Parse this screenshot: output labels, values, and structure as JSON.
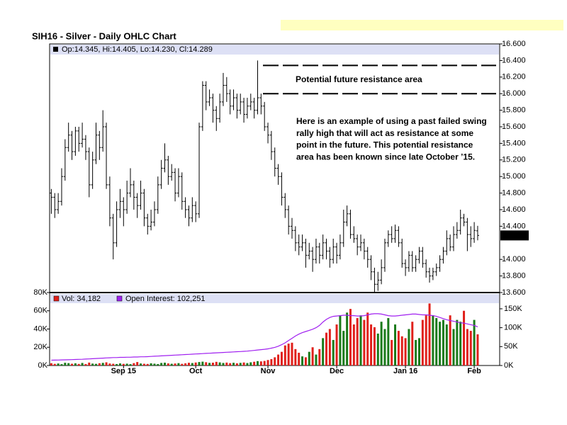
{
  "chart_data": {
    "type": "ohlc",
    "title": "SIH16 - Silver - Daily OHLC Chart",
    "info": "Op:14.345, Hi:14.405, Lo:14.230, Cl:14.289",
    "volume_label": "Vol: 34,182",
    "oi_label": "Open Interest: 102,251",
    "annotation": "Potential future resistance area",
    "note_lines": [
      "Here is an example of using a past failed swing",
      "rally high that will act as resistance at some",
      "point in the future.  This potential resistance",
      "area has been known since late October ’15."
    ],
    "resistance_levels": [
      16.34,
      16.0
    ],
    "xlim": [
      -0.5,
      130.4
    ],
    "xticks": [
      {
        "value": 21,
        "label": "Sep 15"
      },
      {
        "value": 42,
        "label": "Oct"
      },
      {
        "value": 63,
        "label": "Nov"
      },
      {
        "value": 83,
        "label": "Dec"
      },
      {
        "value": 103,
        "label": "Jan 16"
      },
      {
        "value": 123,
        "label": "Feb"
      }
    ],
    "ylim": [
      13.6,
      16.6
    ],
    "yticks": [
      {
        "value": 16.6,
        "label": "16.600"
      },
      {
        "value": 16.4,
        "label": "16.400"
      },
      {
        "value": 16.2,
        "label": "16.200"
      },
      {
        "value": 16.0,
        "label": "16.000"
      },
      {
        "value": 15.8,
        "label": "15.800"
      },
      {
        "value": 15.6,
        "label": "15.600"
      },
      {
        "value": 15.4,
        "label": "15.400"
      },
      {
        "value": 15.2,
        "label": "15.200"
      },
      {
        "value": 15.0,
        "label": "15.000"
      },
      {
        "value": 14.8,
        "label": "14.800"
      },
      {
        "value": 14.6,
        "label": "14.600"
      },
      {
        "value": 14.4,
        "label": "14.400"
      },
      {
        "value": 14.0,
        "label": "14.000"
      },
      {
        "value": 13.8,
        "label": "13.800"
      },
      {
        "value": 13.6,
        "label": "13.600"
      }
    ],
    "vol_lim": [
      0,
      80000
    ],
    "vol_ticks": [
      {
        "value": 80000,
        "label": "80K"
      },
      {
        "value": 60000,
        "label": "60K"
      },
      {
        "value": 40000,
        "label": "40K"
      },
      {
        "value": 20000,
        "label": "20K"
      },
      {
        "value": 0,
        "label": "0K"
      }
    ],
    "y2lim": [
      0,
      193000
    ],
    "y2ticks": [
      {
        "value": 150000,
        "label": "150K"
      },
      {
        "value": 100000,
        "label": "100K"
      },
      {
        "value": 50000,
        "label": "50K"
      },
      {
        "value": 0,
        "label": "0K"
      }
    ],
    "up_color": "#1a7a1a",
    "down_color": "#e0201b",
    "oi_color": "#a020f0",
    "ohlc": [
      [
        14.8,
        14.85,
        14.55,
        14.75
      ],
      [
        14.75,
        14.8,
        14.5,
        14.6
      ],
      [
        14.6,
        14.8,
        14.55,
        14.7
      ],
      [
        14.7,
        15.1,
        14.65,
        15.0
      ],
      [
        15.0,
        15.45,
        14.95,
        15.35
      ],
      [
        15.35,
        15.65,
        15.3,
        15.5
      ],
      [
        15.5,
        15.55,
        15.2,
        15.3
      ],
      [
        15.3,
        15.6,
        15.25,
        15.55
      ],
      [
        15.55,
        15.6,
        15.3,
        15.4
      ],
      [
        15.4,
        15.65,
        15.35,
        15.45
      ],
      [
        15.45,
        15.5,
        15.2,
        15.3
      ],
      [
        15.3,
        15.35,
        14.75,
        14.9
      ],
      [
        14.9,
        15.3,
        14.85,
        15.2
      ],
      [
        15.2,
        15.65,
        15.15,
        15.5
      ],
      [
        15.5,
        15.55,
        15.2,
        15.35
      ],
      [
        15.35,
        15.8,
        15.3,
        15.6
      ],
      [
        15.6,
        15.65,
        14.85,
        14.9
      ],
      [
        14.9,
        15.0,
        14.4,
        14.5
      ],
      [
        14.5,
        14.55,
        14.0,
        14.2
      ],
      [
        14.2,
        14.7,
        14.15,
        14.6
      ],
      [
        14.6,
        14.85,
        14.5,
        14.7
      ],
      [
        14.7,
        14.75,
        14.4,
        14.6
      ],
      [
        14.6,
        14.95,
        14.55,
        14.8
      ],
      [
        14.8,
        15.1,
        14.75,
        14.9
      ],
      [
        14.9,
        14.95,
        14.6,
        14.75
      ],
      [
        14.75,
        14.8,
        14.5,
        14.65
      ],
      [
        14.65,
        14.95,
        14.6,
        14.8
      ],
      [
        14.8,
        14.85,
        14.4,
        14.5
      ],
      [
        14.5,
        14.55,
        14.3,
        14.4
      ],
      [
        14.4,
        14.6,
        14.35,
        14.45
      ],
      [
        14.45,
        14.7,
        14.4,
        14.6
      ],
      [
        14.6,
        15.0,
        14.55,
        14.9
      ],
      [
        14.9,
        15.2,
        14.85,
        15.1
      ],
      [
        15.1,
        15.4,
        15.05,
        15.2
      ],
      [
        15.2,
        15.25,
        14.9,
        15.0
      ],
      [
        15.0,
        15.15,
        14.95,
        15.05
      ],
      [
        15.05,
        15.1,
        14.7,
        14.8
      ],
      [
        14.8,
        15.1,
        14.75,
        15.0
      ],
      [
        15.0,
        15.05,
        14.6,
        14.7
      ],
      [
        14.7,
        14.75,
        14.5,
        14.6
      ],
      [
        14.6,
        14.65,
        14.4,
        14.5
      ],
      [
        14.5,
        14.75,
        14.45,
        14.65
      ],
      [
        14.65,
        14.7,
        14.45,
        14.55
      ],
      [
        14.55,
        15.65,
        14.5,
        15.6
      ],
      [
        15.6,
        16.15,
        15.55,
        16.1
      ],
      [
        16.1,
        16.15,
        15.8,
        15.9
      ],
      [
        15.9,
        16.05,
        15.85,
        15.95
      ],
      [
        15.95,
        16.0,
        15.65,
        15.8
      ],
      [
        15.8,
        15.85,
        15.55,
        15.7
      ],
      [
        15.7,
        16.0,
        15.65,
        15.9
      ],
      [
        15.9,
        16.25,
        15.85,
        16.1
      ],
      [
        16.1,
        16.2,
        15.9,
        16.0
      ],
      [
        16.0,
        16.05,
        15.75,
        15.85
      ],
      [
        15.85,
        16.05,
        15.8,
        15.95
      ],
      [
        15.95,
        16.0,
        15.7,
        15.8
      ],
      [
        15.8,
        16.0,
        15.75,
        15.9
      ],
      [
        15.9,
        15.95,
        15.65,
        15.75
      ],
      [
        15.75,
        15.95,
        15.7,
        15.85
      ],
      [
        15.85,
        16.0,
        15.8,
        15.9
      ],
      [
        15.9,
        15.95,
        15.7,
        15.8
      ],
      [
        15.8,
        16.4,
        15.75,
        15.95
      ],
      [
        15.95,
        16.0,
        15.75,
        15.85
      ],
      [
        15.85,
        15.9,
        15.55,
        15.6
      ],
      [
        15.6,
        15.65,
        15.4,
        15.5
      ],
      [
        15.5,
        15.55,
        15.2,
        15.3
      ],
      [
        15.3,
        15.35,
        15.0,
        15.1
      ],
      [
        15.1,
        15.15,
        14.9,
        15.0
      ],
      [
        15.0,
        15.05,
        14.65,
        14.75
      ],
      [
        14.75,
        14.8,
        14.5,
        14.6
      ],
      [
        14.6,
        14.65,
        14.3,
        14.4
      ],
      [
        14.4,
        14.5,
        14.25,
        14.35
      ],
      [
        14.35,
        14.4,
        14.1,
        14.2
      ],
      [
        14.2,
        14.3,
        14.05,
        14.15
      ],
      [
        14.15,
        14.3,
        14.1,
        14.2
      ],
      [
        14.2,
        14.25,
        13.9,
        14.05
      ],
      [
        14.05,
        14.2,
        14.0,
        14.1
      ],
      [
        14.1,
        14.15,
        13.85,
        14.0
      ],
      [
        14.0,
        14.25,
        13.95,
        14.15
      ],
      [
        14.15,
        14.2,
        13.95,
        14.05
      ],
      [
        14.05,
        14.3,
        14.0,
        14.2
      ],
      [
        14.2,
        14.25,
        14.0,
        14.1
      ],
      [
        14.1,
        14.15,
        13.9,
        14.0
      ],
      [
        14.0,
        14.25,
        13.95,
        14.15
      ],
      [
        14.15,
        14.2,
        13.95,
        14.05
      ],
      [
        14.05,
        14.3,
        14.0,
        14.2
      ],
      [
        14.2,
        14.6,
        14.15,
        14.45
      ],
      [
        14.45,
        14.65,
        14.4,
        14.55
      ],
      [
        14.55,
        14.6,
        14.25,
        14.3
      ],
      [
        14.3,
        14.4,
        14.2,
        14.25
      ],
      [
        14.25,
        14.3,
        14.05,
        14.15
      ],
      [
        14.15,
        14.3,
        14.1,
        14.2
      ],
      [
        14.2,
        14.25,
        14.0,
        14.1
      ],
      [
        14.1,
        14.15,
        13.9,
        14.0
      ],
      [
        14.0,
        14.05,
        13.75,
        13.85
      ],
      [
        13.85,
        13.9,
        13.6,
        13.7
      ],
      [
        13.7,
        13.85,
        13.62,
        13.75
      ],
      [
        13.75,
        14.0,
        13.7,
        13.9
      ],
      [
        13.9,
        14.25,
        13.85,
        14.2
      ],
      [
        14.2,
        14.35,
        14.15,
        14.3
      ],
      [
        14.3,
        14.4,
        14.2,
        14.25
      ],
      [
        14.25,
        14.42,
        14.2,
        14.35
      ],
      [
        14.35,
        14.4,
        14.15,
        14.2
      ],
      [
        14.2,
        14.25,
        13.9,
        13.95
      ],
      [
        13.95,
        14.0,
        13.8,
        13.9
      ],
      [
        13.9,
        14.1,
        13.85,
        14.05
      ],
      [
        14.05,
        14.1,
        13.85,
        13.9
      ],
      [
        13.9,
        14.05,
        13.85,
        14.0
      ],
      [
        14.0,
        14.15,
        13.95,
        14.1
      ],
      [
        14.1,
        14.15,
        13.9,
        13.95
      ],
      [
        13.95,
        14.0,
        13.78,
        13.85
      ],
      [
        13.85,
        13.9,
        13.72,
        13.8
      ],
      [
        13.8,
        13.9,
        13.75,
        13.85
      ],
      [
        13.85,
        13.95,
        13.8,
        13.9
      ],
      [
        13.9,
        14.05,
        13.85,
        14.0
      ],
      [
        14.0,
        14.15,
        13.95,
        14.1
      ],
      [
        14.1,
        14.35,
        14.05,
        14.25
      ],
      [
        14.25,
        14.3,
        14.1,
        14.15
      ],
      [
        14.15,
        14.4,
        14.1,
        14.3
      ],
      [
        14.3,
        14.45,
        14.25,
        14.35
      ],
      [
        14.35,
        14.6,
        14.3,
        14.5
      ],
      [
        14.5,
        14.55,
        14.4,
        14.45
      ],
      [
        14.45,
        14.5,
        14.1,
        14.3
      ],
      [
        14.3,
        14.4,
        14.15,
        14.25
      ],
      [
        14.25,
        14.45,
        14.2,
        14.35
      ],
      [
        14.345,
        14.405,
        14.23,
        14.289
      ]
    ],
    "volume": [
      2500,
      1800,
      2200,
      1500,
      3000,
      2600,
      1900,
      2400,
      1700,
      2800,
      1600,
      3200,
      2100,
      1800,
      2500,
      2900,
      3500,
      2200,
      1900,
      1600,
      2300,
      1800,
      2000,
      1500,
      2600,
      3800,
      2200,
      1900,
      1700,
      2400,
      2000,
      1600,
      2800,
      3100,
      2300,
      1900,
      2200,
      2600,
      1800,
      2400,
      3000,
      2700,
      3300,
      3800,
      4200,
      3600,
      2900,
      3100,
      4000,
      3400,
      2800,
      3200,
      2600,
      3000,
      2400,
      2900,
      3300,
      2700,
      3500,
      4100,
      4800,
      4500,
      5000,
      6000,
      7000,
      9000,
      12000,
      15000,
      22000,
      24000,
      25000,
      18000,
      14000,
      10000,
      9000,
      15000,
      20000,
      12000,
      18000,
      30000,
      36000,
      40000,
      28000,
      45000,
      55000,
      38000,
      58000,
      62000,
      45000,
      52000,
      55000,
      50000,
      58000,
      45000,
      42000,
      35000,
      48000,
      40000,
      52000,
      28000,
      45000,
      38000,
      32000,
      30000,
      40000,
      48000,
      28000,
      30000,
      50000,
      55000,
      68000,
      55000,
      52000,
      48000,
      50000,
      45000,
      55000,
      40000,
      50000,
      48000,
      60000,
      40000,
      38000,
      50000,
      34182
    ],
    "open_interest": [
      14000,
      14200,
      14500,
      14800,
      15000,
      15200,
      15500,
      16000,
      16300,
      16500,
      17000,
      17500,
      18000,
      18500,
      19000,
      19500,
      20000,
      20500,
      21000,
      21000,
      21500,
      21500,
      22000,
      22000,
      22500,
      22500,
      23000,
      23000,
      23500,
      24000,
      24500,
      25000,
      25500,
      26000,
      26500,
      27000,
      27500,
      28000,
      28500,
      29000,
      29500,
      30000,
      30500,
      31000,
      31500,
      32000,
      32500,
      33000,
      33500,
      34000,
      34500,
      35000,
      35500,
      36000,
      36500,
      37000,
      37500,
      38000,
      39000,
      40000,
      41000,
      42000,
      43000,
      44000,
      46000,
      48000,
      51000,
      55000,
      60000,
      66000,
      72000,
      78000,
      83000,
      87000,
      90000,
      93000,
      96000,
      100000,
      106000,
      115000,
      122000,
      127000,
      130000,
      131000,
      132000,
      133000,
      133000,
      132000,
      132000,
      131000,
      131000,
      132000,
      134000,
      136000,
      137000,
      137000,
      136000,
      134000,
      132000,
      131000,
      131000,
      132000,
      133000,
      134000,
      135000,
      136000,
      136000,
      135000,
      134000,
      134000,
      133000,
      132000,
      130000,
      127000,
      124000,
      121000,
      119000,
      117000,
      115000,
      113000,
      112000,
      110000,
      108000,
      106000,
      102251
    ]
  }
}
